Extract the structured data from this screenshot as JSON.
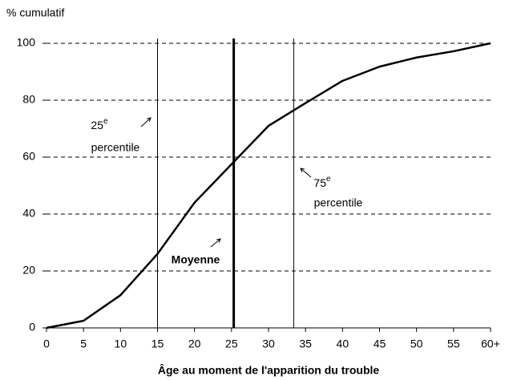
{
  "chart_data": {
    "type": "line",
    "y_axis_label": "% cumulatif",
    "x_axis_label": "Âge au moment de l'apparition du trouble",
    "x": [
      0,
      5,
      10,
      15,
      20,
      25,
      30,
      35,
      40,
      45,
      50,
      55,
      60
    ],
    "series": [
      {
        "color": "#000000",
        "values": [
          0,
          2.5,
          11.5,
          26,
          44,
          57.5,
          71,
          79,
          86.8,
          91.8,
          95,
          97.2,
          100
        ]
      }
    ],
    "xlim": [
      0,
      60
    ],
    "xticks": [
      0,
      5,
      10,
      15,
      20,
      25,
      30,
      35,
      40,
      45,
      50,
      55,
      {
        "value": 60,
        "label": "60+"
      }
    ],
    "ylim": [
      0,
      100
    ],
    "yticks": [
      0,
      20,
      40,
      60,
      80,
      100
    ],
    "grid": true,
    "reference_lines": [
      {
        "x": 15,
        "width": 1
      },
      {
        "x": 25.3,
        "width": 3
      },
      {
        "x": 33.4,
        "width": 1
      }
    ],
    "annotations": [
      {
        "number": "25",
        "sup": "e",
        "text": "percentile"
      },
      {
        "number": "75",
        "sup": "e",
        "text": "percentile"
      },
      {
        "text": "Moyenne"
      }
    ]
  }
}
